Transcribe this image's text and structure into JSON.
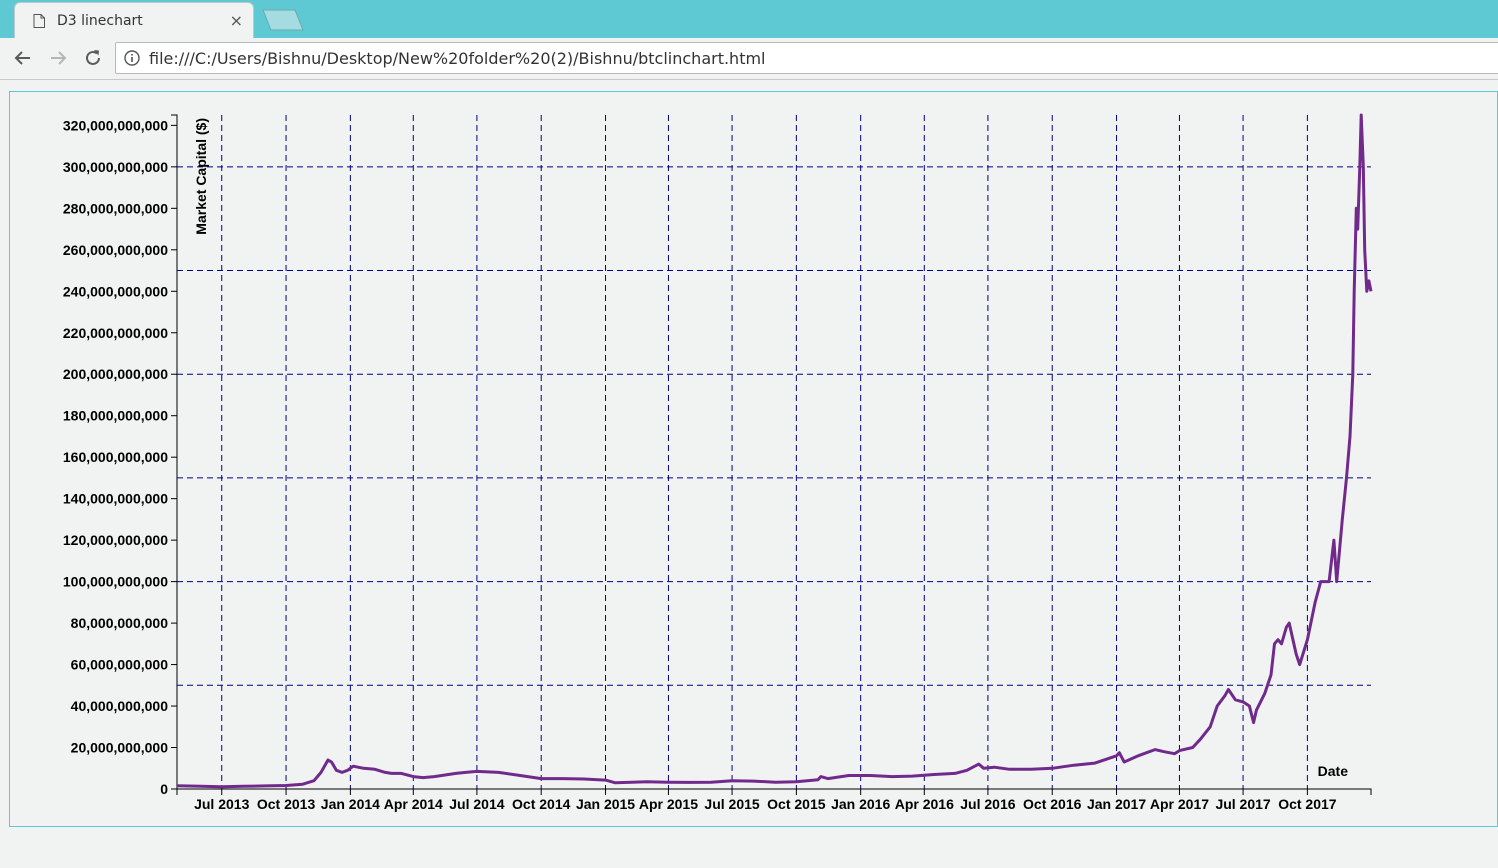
{
  "browser": {
    "tab_title": "D3 linechart",
    "close_glyph": "×",
    "url": "file:///C:/Users/Bishnu/Desktop/New%20folder%20(2)/Bishnu/btclinchart.html",
    "icons": [
      "page-icon",
      "close-icon",
      "back-icon",
      "forward-icon",
      "reload-icon",
      "info-icon"
    ],
    "colors": {
      "titlebar": "#5fc9d3",
      "page_bg": "#f1f2f2"
    }
  },
  "chart_data": {
    "type": "line",
    "title": "",
    "xlabel": "Date",
    "ylabel": "Market Capital ($)",
    "x_range": [
      "2013-04-28",
      "2017-12-31"
    ],
    "ylim": [
      0,
      325000000000
    ],
    "grid": true,
    "colors": {
      "line": "#702a8c",
      "grid": "#00008b"
    },
    "y_ticks": [
      {
        "value": 0,
        "label": "0"
      },
      {
        "value": 20000000000,
        "label": "20,000,000,000"
      },
      {
        "value": 40000000000,
        "label": "40,000,000,000"
      },
      {
        "value": 60000000000,
        "label": "60,000,000,000"
      },
      {
        "value": 80000000000,
        "label": "80,000,000,000"
      },
      {
        "value": 100000000000,
        "label": "100,000,000,000"
      },
      {
        "value": 120000000000,
        "label": "120,000,000,000"
      },
      {
        "value": 140000000000,
        "label": "140,000,000,000"
      },
      {
        "value": 160000000000,
        "label": "160,000,000,000"
      },
      {
        "value": 180000000000,
        "label": "180,000,000,000"
      },
      {
        "value": 200000000000,
        "label": "200,000,000,000"
      },
      {
        "value": 220000000000,
        "label": "220,000,000,000"
      },
      {
        "value": 240000000000,
        "label": "240,000,000,000"
      },
      {
        "value": 260000000000,
        "label": "260,000,000,000"
      },
      {
        "value": 280000000000,
        "label": "280,000,000,000"
      },
      {
        "value": 300000000000,
        "label": "300,000,000,000"
      },
      {
        "value": 320000000000,
        "label": "320,000,000,000"
      }
    ],
    "x_ticks": [
      {
        "value": "2013-07-01",
        "label": "Jul 2013"
      },
      {
        "value": "2013-10-01",
        "label": "Oct 2013"
      },
      {
        "value": "2014-01-01",
        "label": "Jan 2014"
      },
      {
        "value": "2014-04-01",
        "label": "Apr 2014"
      },
      {
        "value": "2014-07-01",
        "label": "Jul 2014"
      },
      {
        "value": "2014-10-01",
        "label": "Oct 2014"
      },
      {
        "value": "2015-01-01",
        "label": "Jan 2015"
      },
      {
        "value": "2015-04-01",
        "label": "Apr 2015"
      },
      {
        "value": "2015-07-01",
        "label": "Jul 2015"
      },
      {
        "value": "2015-10-01",
        "label": "Oct 2015"
      },
      {
        "value": "2016-01-01",
        "label": "Jan 2016"
      },
      {
        "value": "2016-04-01",
        "label": "Apr 2016"
      },
      {
        "value": "2016-07-01",
        "label": "Jul 2016"
      },
      {
        "value": "2016-10-01",
        "label": "Oct 2016"
      },
      {
        "value": "2017-01-01",
        "label": "Jan 2017"
      },
      {
        "value": "2017-04-01",
        "label": "Apr 2017"
      },
      {
        "value": "2017-07-01",
        "label": "Jul 2017"
      },
      {
        "value": "2017-10-01",
        "label": "Oct 2017"
      }
    ],
    "h_grid_values": [
      50000000000,
      100000000000,
      150000000000,
      200000000000,
      250000000000,
      300000000000
    ],
    "series": [
      {
        "x": [
          "2013-04-28",
          "2013-06-01",
          "2013-07-01",
          "2013-08-01",
          "2013-09-01",
          "2013-10-01",
          "2013-10-25",
          "2013-11-10",
          "2013-11-20",
          "2013-11-30",
          "2013-12-05",
          "2013-12-12",
          "2013-12-20",
          "2013-12-28",
          "2014-01-05",
          "2014-01-20",
          "2014-02-05",
          "2014-02-20",
          "2014-03-01",
          "2014-03-15",
          "2014-04-01",
          "2014-04-15",
          "2014-05-01",
          "2014-06-01",
          "2014-06-15",
          "2014-07-01",
          "2014-08-01",
          "2014-09-01",
          "2014-10-01",
          "2014-11-01",
          "2014-12-01",
          "2015-01-01",
          "2015-01-15",
          "2015-02-01",
          "2015-03-01",
          "2015-04-01",
          "2015-05-01",
          "2015-06-01",
          "2015-07-01",
          "2015-08-01",
          "2015-09-01",
          "2015-10-01",
          "2015-11-01",
          "2015-11-05",
          "2015-11-15",
          "2015-12-15",
          "2016-01-15",
          "2016-02-15",
          "2016-03-15",
          "2016-04-15",
          "2016-05-15",
          "2016-06-01",
          "2016-06-18",
          "2016-06-25",
          "2016-07-10",
          "2016-08-01",
          "2016-09-01",
          "2016-10-01",
          "2016-11-01",
          "2016-12-01",
          "2017-01-01",
          "2017-01-05",
          "2017-01-12",
          "2017-02-01",
          "2017-02-25",
          "2017-03-10",
          "2017-03-25",
          "2017-04-01",
          "2017-04-20",
          "2017-05-01",
          "2017-05-15",
          "2017-05-25",
          "2017-06-05",
          "2017-06-10",
          "2017-06-20",
          "2017-07-01",
          "2017-07-10",
          "2017-07-16",
          "2017-07-20",
          "2017-08-01",
          "2017-08-10",
          "2017-08-15",
          "2017-08-20",
          "2017-08-25",
          "2017-09-01",
          "2017-09-05",
          "2017-09-15",
          "2017-09-20",
          "2017-10-01",
          "2017-10-12",
          "2017-10-20",
          "2017-11-01",
          "2017-11-08",
          "2017-11-12",
          "2017-11-20",
          "2017-11-26",
          "2017-12-01",
          "2017-12-05",
          "2017-12-07",
          "2017-12-10",
          "2017-12-12",
          "2017-12-15",
          "2017-12-17",
          "2017-12-20",
          "2017-12-22",
          "2017-12-25",
          "2017-12-28",
          "2017-12-31"
        ],
        "y": [
          1600000000,
          1300000000,
          1100000000,
          1300000000,
          1500000000,
          1700000000,
          2300000000,
          4000000000,
          8000000000,
          14000000000,
          13000000000,
          9000000000,
          8000000000,
          9000000000,
          11000000000,
          10000000000,
          9500000000,
          8000000000,
          7500000000,
          7500000000,
          6000000000,
          5500000000,
          6000000000,
          7500000000,
          8000000000,
          8500000000,
          8000000000,
          6500000000,
          5000000000,
          5000000000,
          4800000000,
          4300000000,
          3000000000,
          3200000000,
          3500000000,
          3300000000,
          3200000000,
          3300000000,
          4000000000,
          3800000000,
          3300000000,
          3500000000,
          4500000000,
          6000000000,
          5000000000,
          6500000000,
          6500000000,
          6000000000,
          6200000000,
          7000000000,
          7500000000,
          9000000000,
          12000000000,
          10000000000,
          10500000000,
          9500000000,
          9500000000,
          10000000000,
          11500000000,
          12500000000,
          16000000000,
          17500000000,
          13000000000,
          16000000000,
          19000000000,
          18000000000,
          17000000000,
          18500000000,
          20000000000,
          24000000000,
          30000000000,
          40000000000,
          45000000000,
          48000000000,
          43000000000,
          42000000000,
          40000000000,
          32000000000,
          38000000000,
          46000000000,
          55000000000,
          70000000000,
          72000000000,
          70000000000,
          78000000000,
          80000000000,
          65000000000,
          60000000000,
          72000000000,
          90000000000,
          100000000000,
          100000000000,
          120000000000,
          100000000000,
          130000000000,
          150000000000,
          170000000000,
          200000000000,
          240000000000,
          280000000000,
          270000000000,
          300000000000,
          325000000000,
          300000000000,
          260000000000,
          240000000000,
          245000000000,
          240000000000
        ]
      }
    ]
  }
}
